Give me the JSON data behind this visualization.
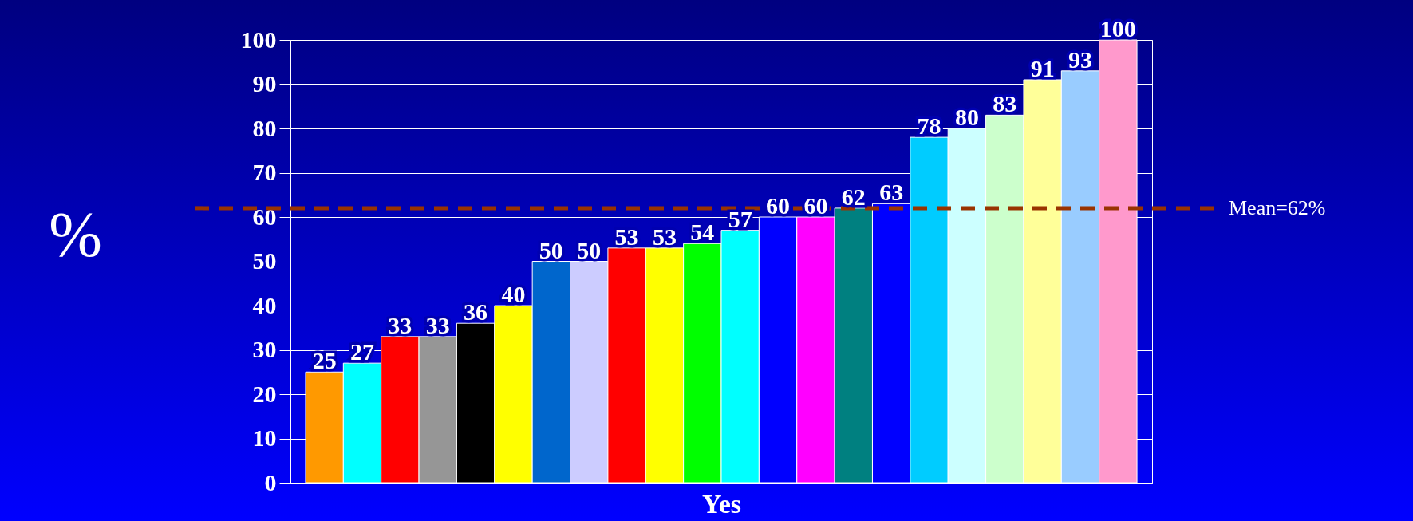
{
  "chart_data": {
    "type": "bar",
    "xlabel": "Yes",
    "ylabel": "%",
    "categories": [
      null,
      null,
      null,
      null,
      null,
      null,
      null,
      null,
      null,
      null,
      null,
      null,
      null,
      null,
      null,
      null,
      null,
      null,
      null,
      null,
      null,
      null
    ],
    "values": [
      25,
      27,
      33,
      33,
      36,
      40,
      50,
      50,
      53,
      53,
      54,
      57,
      60,
      60,
      62,
      63,
      78,
      80,
      83,
      91,
      93,
      100
    ],
    "colors": [
      "#ff9900",
      "#00ffff",
      "#ff0000",
      "#969696",
      "#000000",
      "#ffff00",
      "#0066cc",
      "#ccccff",
      "#ff0000",
      "#ffff00",
      "#00ff00",
      "#00ffff",
      "#0000ff",
      "#ff00ff",
      "#008080",
      "#0000ff",
      "#00ccff",
      "#ccffff",
      "#ccffcc",
      "#ffff99",
      "#99ccff",
      "#ff99cc"
    ],
    "ylim": [
      0,
      100
    ],
    "yticks": [
      0,
      10,
      20,
      30,
      40,
      50,
      60,
      70,
      80,
      90,
      100
    ],
    "grid": "y",
    "data_labels": true,
    "tick_labels": "y",
    "ref_lines": [
      {
        "axis": "y",
        "value": 62,
        "label": "Mean=62%",
        "color": "#993300",
        "line_style": "dashed"
      }
    ]
  }
}
